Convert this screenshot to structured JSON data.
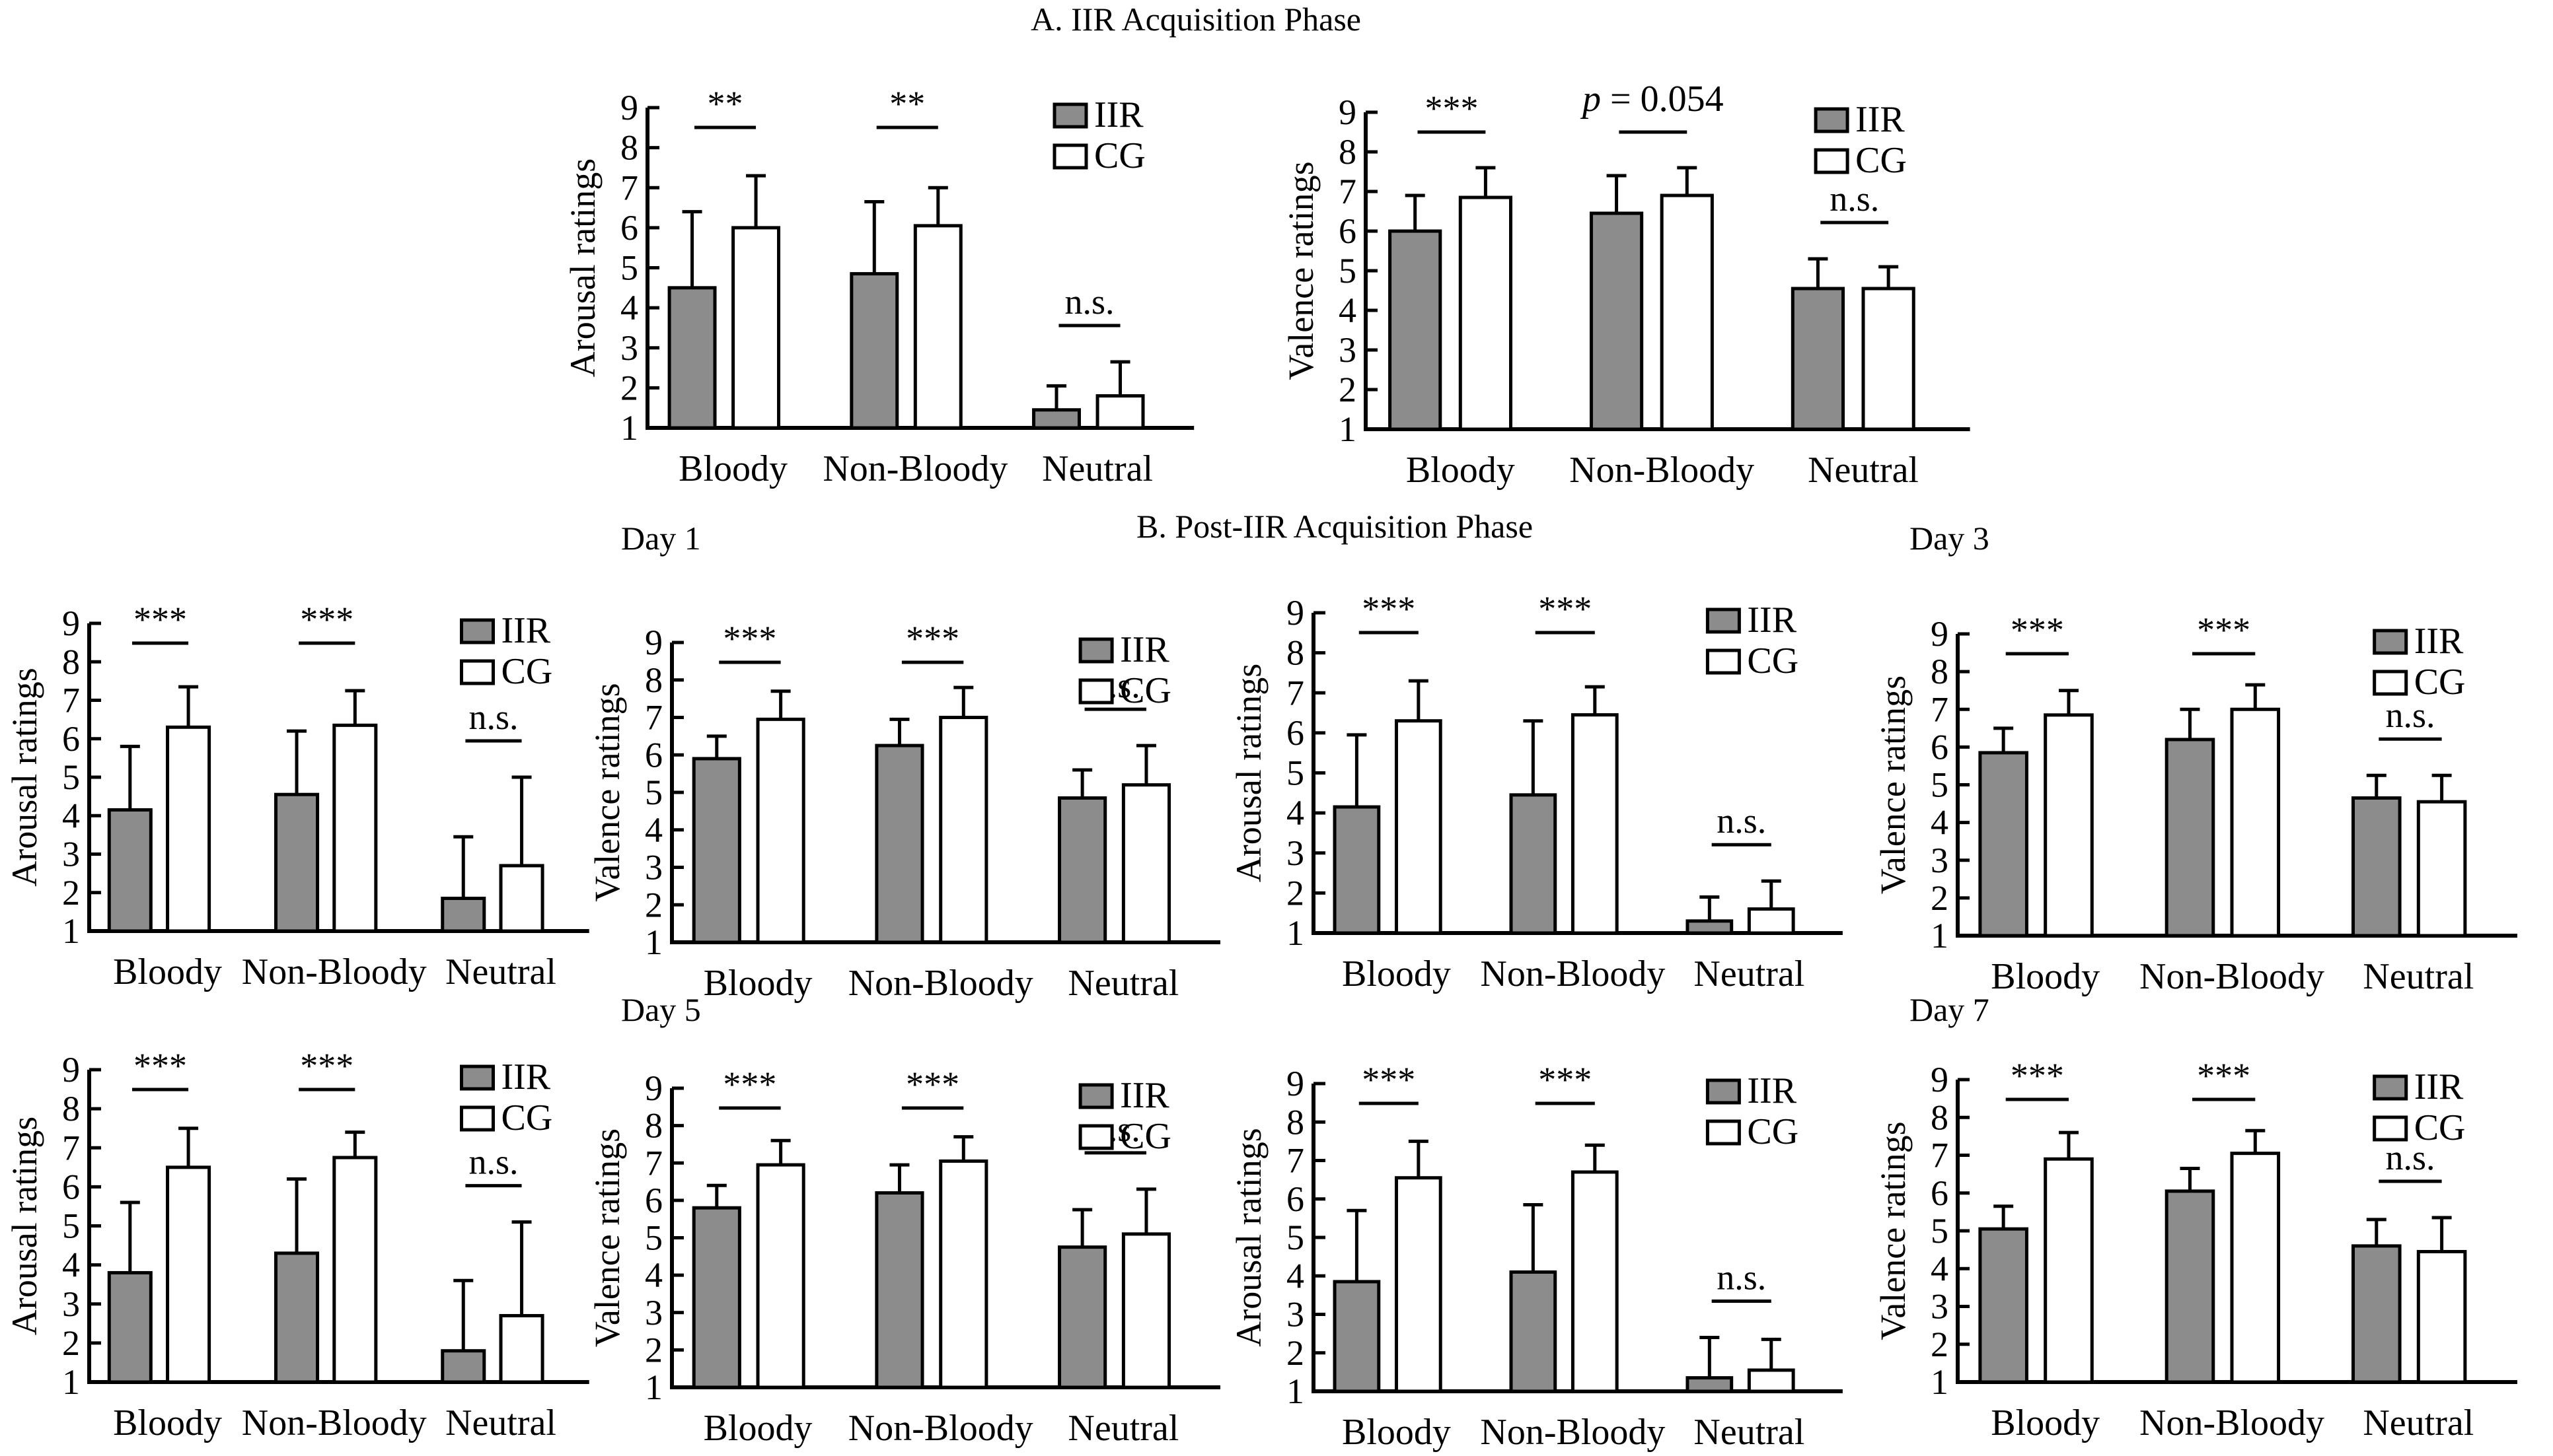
{
  "figure": {
    "title_a": "A. IIR Acquisition Phase",
    "title_b": "B. Post-IIR Acquisition Phase",
    "day_labels": [
      "Day 1",
      "Day 3",
      "Day 5",
      "Day 7"
    ]
  },
  "colors": {
    "iir": "#8c8c8c",
    "cg": "#ffffff",
    "stroke": "#000000"
  },
  "chart_data": [
    {
      "id": "A-arousal",
      "type": "bar",
      "section": "A. IIR Acquisition Phase",
      "ylabel": "Arousal ratings",
      "xlabel": "",
      "ylim": [
        1,
        9
      ],
      "yticks": [
        "1",
        "2",
        "3",
        "4",
        "5",
        "6",
        "7",
        "8",
        "9"
      ],
      "categories": [
        "Bloody",
        "Non-Bloody",
        "Neutral"
      ],
      "legend": [
        "IIR",
        "CG"
      ],
      "legend_position": "top-right",
      "series": [
        {
          "name": "IIR",
          "values": [
            4.5,
            4.85,
            1.45
          ],
          "error": [
            1.9,
            1.8,
            0.6
          ]
        },
        {
          "name": "CG",
          "values": [
            6.0,
            6.05,
            1.8
          ],
          "error": [
            1.3,
            0.95,
            0.85
          ]
        }
      ],
      "annotations": [
        "**",
        "**",
        "n.s."
      ]
    },
    {
      "id": "A-valence",
      "type": "bar",
      "section": "A. IIR Acquisition Phase",
      "ylabel": "Valence ratings",
      "xlabel": "",
      "ylim": [
        1,
        9
      ],
      "yticks": [
        "1",
        "2",
        "3",
        "4",
        "5",
        "6",
        "7",
        "8",
        "9"
      ],
      "categories": [
        "Bloody",
        "Non-Bloody",
        "Neutral"
      ],
      "legend": [
        "IIR",
        "CG"
      ],
      "legend_position": "top-right",
      "series": [
        {
          "name": "IIR",
          "values": [
            6.0,
            6.45,
            4.55
          ],
          "error": [
            0.9,
            0.95,
            0.75
          ]
        },
        {
          "name": "CG",
          "values": [
            6.85,
            6.9,
            4.55
          ],
          "error": [
            0.75,
            0.7,
            0.55
          ]
        }
      ],
      "annotations": [
        "***",
        "p = 0.054",
        "n.s."
      ]
    },
    {
      "id": "B-day1-arousal",
      "type": "bar",
      "section": "B. Post-IIR Acquisition Phase",
      "day": "Day 1",
      "ylabel": "Arousal ratings",
      "xlabel": "",
      "ylim": [
        1,
        9
      ],
      "yticks": [
        "1",
        "2",
        "3",
        "4",
        "5",
        "6",
        "7",
        "8",
        "9"
      ],
      "categories": [
        "Bloody",
        "Non-Bloody",
        "Neutral"
      ],
      "legend": [
        "IIR",
        "CG"
      ],
      "legend_position": "top-right",
      "series": [
        {
          "name": "IIR",
          "values": [
            4.15,
            4.55,
            1.85
          ],
          "error": [
            1.65,
            1.65,
            1.6
          ]
        },
        {
          "name": "CG",
          "values": [
            6.3,
            6.35,
            2.7
          ],
          "error": [
            1.05,
            0.9,
            2.3
          ]
        }
      ],
      "annotations": [
        "***",
        "***",
        "n.s."
      ]
    },
    {
      "id": "B-day1-valence",
      "type": "bar",
      "section": "B. Post-IIR Acquisition Phase",
      "day": "Day 1",
      "ylabel": "Valence ratings",
      "xlabel": "",
      "ylim": [
        1,
        9
      ],
      "yticks": [
        "1",
        "2",
        "3",
        "4",
        "5",
        "6",
        "7",
        "8",
        "9"
      ],
      "categories": [
        "Bloody",
        "Non-Bloody",
        "Neutral"
      ],
      "legend": [
        "IIR",
        "CG"
      ],
      "legend_position": "top-right",
      "series": [
        {
          "name": "IIR",
          "values": [
            5.9,
            6.25,
            4.85
          ],
          "error": [
            0.6,
            0.7,
            0.75
          ]
        },
        {
          "name": "CG",
          "values": [
            6.95,
            7.0,
            5.2
          ],
          "error": [
            0.75,
            0.8,
            1.05
          ]
        }
      ],
      "annotations": [
        "***",
        "***",
        "n.s."
      ]
    },
    {
      "id": "B-day3-arousal",
      "type": "bar",
      "section": "B. Post-IIR Acquisition Phase",
      "day": "Day 3",
      "ylabel": "Arousal ratings",
      "xlabel": "",
      "ylim": [
        1,
        9
      ],
      "yticks": [
        "1",
        "2",
        "3",
        "4",
        "5",
        "6",
        "7",
        "8",
        "9"
      ],
      "categories": [
        "Bloody",
        "Non-Bloody",
        "Neutral"
      ],
      "legend": [
        "IIR",
        "CG"
      ],
      "legend_position": "top-right",
      "series": [
        {
          "name": "IIR",
          "values": [
            4.15,
            4.45,
            1.3
          ],
          "error": [
            1.8,
            1.85,
            0.6
          ]
        },
        {
          "name": "CG",
          "values": [
            6.3,
            6.45,
            1.6
          ],
          "error": [
            1.0,
            0.7,
            0.7
          ]
        }
      ],
      "annotations": [
        "***",
        "***",
        "n.s."
      ]
    },
    {
      "id": "B-day3-valence",
      "type": "bar",
      "section": "B. Post-IIR Acquisition Phase",
      "day": "Day 3",
      "ylabel": "Valence ratings",
      "xlabel": "",
      "ylim": [
        1,
        9
      ],
      "yticks": [
        "1",
        "2",
        "3",
        "4",
        "5",
        "6",
        "7",
        "8",
        "9"
      ],
      "categories": [
        "Bloody",
        "Non-Bloody",
        "Neutral"
      ],
      "legend": [
        "IIR",
        "CG"
      ],
      "legend_position": "top-right",
      "series": [
        {
          "name": "IIR",
          "values": [
            5.85,
            6.2,
            4.65
          ],
          "error": [
            0.65,
            0.8,
            0.6
          ]
        },
        {
          "name": "CG",
          "values": [
            6.85,
            7.0,
            4.55
          ],
          "error": [
            0.65,
            0.65,
            0.7
          ]
        }
      ],
      "annotations": [
        "***",
        "***",
        "n.s."
      ]
    },
    {
      "id": "B-day5-arousal",
      "type": "bar",
      "section": "B. Post-IIR Acquisition Phase",
      "day": "Day 5",
      "ylabel": "Arousal ratings",
      "xlabel": "",
      "ylim": [
        1,
        9
      ],
      "yticks": [
        "1",
        "2",
        "3",
        "4",
        "5",
        "6",
        "7",
        "8",
        "9"
      ],
      "categories": [
        "Bloody",
        "Non-Bloody",
        "Neutral"
      ],
      "legend": [
        "IIR",
        "CG"
      ],
      "legend_position": "top-right",
      "series": [
        {
          "name": "IIR",
          "values": [
            3.8,
            4.3,
            1.8
          ],
          "error": [
            1.8,
            1.9,
            1.8
          ]
        },
        {
          "name": "CG",
          "values": [
            6.5,
            6.75,
            2.7
          ],
          "error": [
            1.0,
            0.65,
            2.4
          ]
        }
      ],
      "annotations": [
        "***",
        "***",
        "n.s."
      ]
    },
    {
      "id": "B-day5-valence",
      "type": "bar",
      "section": "B. Post-IIR Acquisition Phase",
      "day": "Day 5",
      "ylabel": "Valence ratings",
      "xlabel": "",
      "ylim": [
        1,
        9
      ],
      "yticks": [
        "1",
        "2",
        "3",
        "4",
        "5",
        "6",
        "7",
        "8",
        "9"
      ],
      "categories": [
        "Bloody",
        "Non-Bloody",
        "Neutral"
      ],
      "legend": [
        "IIR",
        "CG"
      ],
      "legend_position": "top-right",
      "series": [
        {
          "name": "IIR",
          "values": [
            5.8,
            6.2,
            4.75
          ],
          "error": [
            0.6,
            0.75,
            1.0
          ]
        },
        {
          "name": "CG",
          "values": [
            6.95,
            7.05,
            5.1
          ],
          "error": [
            0.65,
            0.65,
            1.2
          ]
        }
      ],
      "annotations": [
        "***",
        "***",
        "n.s."
      ]
    },
    {
      "id": "B-day7-arousal",
      "type": "bar",
      "section": "B. Post-IIR Acquisition Phase",
      "day": "Day 7",
      "ylabel": "Arousal ratings",
      "xlabel": "",
      "ylim": [
        1,
        9
      ],
      "yticks": [
        "1",
        "2",
        "3",
        "4",
        "5",
        "6",
        "7",
        "8",
        "9"
      ],
      "categories": [
        "Bloody",
        "Non-Bloody",
        "Neutral"
      ],
      "legend": [
        "IIR",
        "CG"
      ],
      "legend_position": "top-right",
      "series": [
        {
          "name": "IIR",
          "values": [
            3.85,
            4.1,
            1.35
          ],
          "error": [
            1.85,
            1.75,
            1.05
          ]
        },
        {
          "name": "CG",
          "values": [
            6.55,
            6.7,
            1.55
          ],
          "error": [
            0.95,
            0.7,
            0.8
          ]
        }
      ],
      "annotations": [
        "***",
        "***",
        "n.s."
      ]
    },
    {
      "id": "B-day7-valence",
      "type": "bar",
      "section": "B. Post-IIR Acquisition Phase",
      "day": "Day 7",
      "ylabel": "Valence ratings",
      "xlabel": "",
      "ylim": [
        1,
        9
      ],
      "yticks": [
        "1",
        "2",
        "3",
        "4",
        "5",
        "6",
        "7",
        "8",
        "9"
      ],
      "categories": [
        "Bloody",
        "Non-Bloody",
        "Neutral"
      ],
      "legend": [
        "IIR",
        "CG"
      ],
      "legend_position": "top-right",
      "series": [
        {
          "name": "IIR",
          "values": [
            5.05,
            6.05,
            4.6
          ],
          "error": [
            0.6,
            0.6,
            0.7
          ]
        },
        {
          "name": "CG",
          "values": [
            6.9,
            7.05,
            4.45
          ],
          "error": [
            0.7,
            0.6,
            0.9
          ]
        }
      ],
      "annotations": [
        "***",
        "***",
        "n.s."
      ]
    }
  ]
}
